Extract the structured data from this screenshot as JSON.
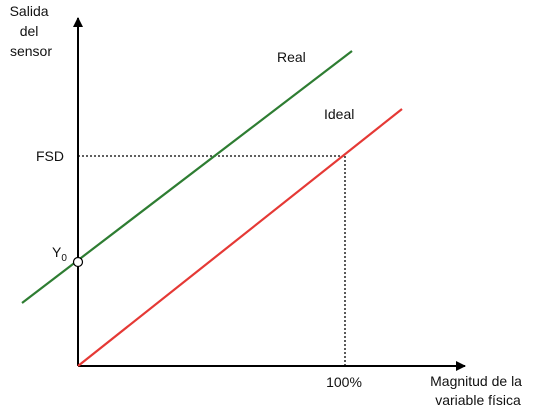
{
  "axes": {
    "y_label_lines": [
      "Salida",
      "del",
      "sensor"
    ],
    "x_label_lines": [
      "Magnitud de la",
      "variable física"
    ]
  },
  "markers": {
    "fsd": "FSD",
    "offset_main": "Y",
    "offset_sub": "0",
    "full_scale": "100%"
  },
  "lines": {
    "real": {
      "label": "Real",
      "color": "#2e7d32"
    },
    "ideal": {
      "label": "Ideal",
      "color": "#e53935"
    }
  },
  "colors": {
    "axis": "#000000",
    "guide": "#000000"
  }
}
